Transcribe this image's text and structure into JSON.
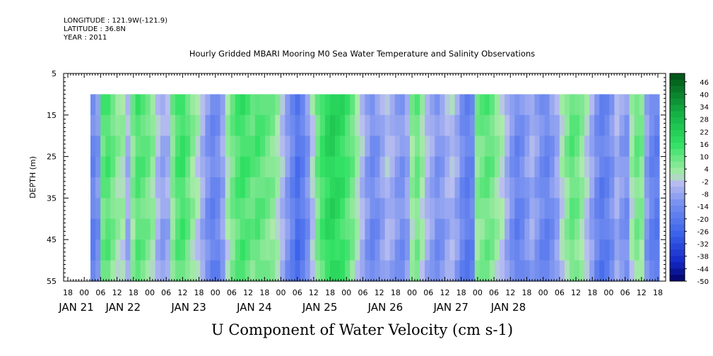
{
  "header": {
    "longitude": "LONGITUDE : 121.9W(-121.9)",
    "latitude": "LATITUDE : 36.8N",
    "year": "YEAR : 2011"
  },
  "chart_data": {
    "type": "heatmap",
    "title": "Hourly Gridded MBARI Mooring M0 Sea Water Temperature and Salinity Observations",
    "xlabel": "U Component of Water Velocity (cm s-1)",
    "ylabel": "DEPTH (m)",
    "ylim": [
      5,
      55
    ],
    "y_reversed": true,
    "yticks": [
      5,
      15,
      25,
      35,
      45,
      55
    ],
    "data_depth_range": [
      10,
      55
    ],
    "x_hour_labels": [
      "18",
      "00",
      "06",
      "12",
      "18",
      "00",
      "06",
      "12",
      "18",
      "00",
      "06",
      "12",
      "18",
      "00",
      "06",
      "12",
      "18",
      "00",
      "06",
      "12",
      "18",
      "00",
      "06",
      "12",
      "18",
      "00",
      "06",
      "12",
      "18",
      "00",
      "06",
      "12",
      "18",
      "00",
      "06",
      "12",
      "18"
    ],
    "x_day_labels": [
      "JAN 21",
      "JAN 22",
      "JAN 23",
      "JAN 24",
      "JAN 25",
      "JAN 26",
      "JAN 27",
      "JAN 28"
    ],
    "colorbar": {
      "labels": [
        46,
        40,
        34,
        28,
        22,
        16,
        10,
        4,
        -2,
        -8,
        -14,
        -20,
        -26,
        -32,
        -38,
        -44,
        -50
      ],
      "range": [
        -50,
        50
      ],
      "step": 3
    },
    "columns_u_cm_s": [
      -14,
      -10,
      12,
      14,
      10,
      6,
      4,
      -4,
      8,
      14,
      12,
      10,
      6,
      -2,
      -6,
      -4,
      8,
      14,
      16,
      12,
      6,
      2,
      -4,
      -10,
      -14,
      -12,
      -6,
      4,
      10,
      14,
      16,
      14,
      12,
      14,
      12,
      10,
      8,
      4,
      -2,
      -8,
      -14,
      -20,
      -16,
      -10,
      0,
      10,
      16,
      20,
      22,
      20,
      18,
      14,
      10,
      4,
      -2,
      -8,
      -12,
      -10,
      -6,
      -2,
      -4,
      -8,
      -10,
      -6,
      6,
      10,
      4,
      -2,
      -6,
      -10,
      -8,
      -4,
      -2,
      -6,
      -12,
      -16,
      -14,
      8,
      10,
      12,
      10,
      6,
      2,
      -4,
      -10,
      -14,
      -12,
      -8,
      -4,
      -8,
      -12,
      -14,
      -10,
      -6,
      2,
      8,
      12,
      10,
      6,
      0,
      -6,
      -12,
      -16,
      -14,
      -10,
      -4,
      -8,
      -10,
      4,
      10,
      8,
      -8,
      -14,
      -16
    ]
  }
}
